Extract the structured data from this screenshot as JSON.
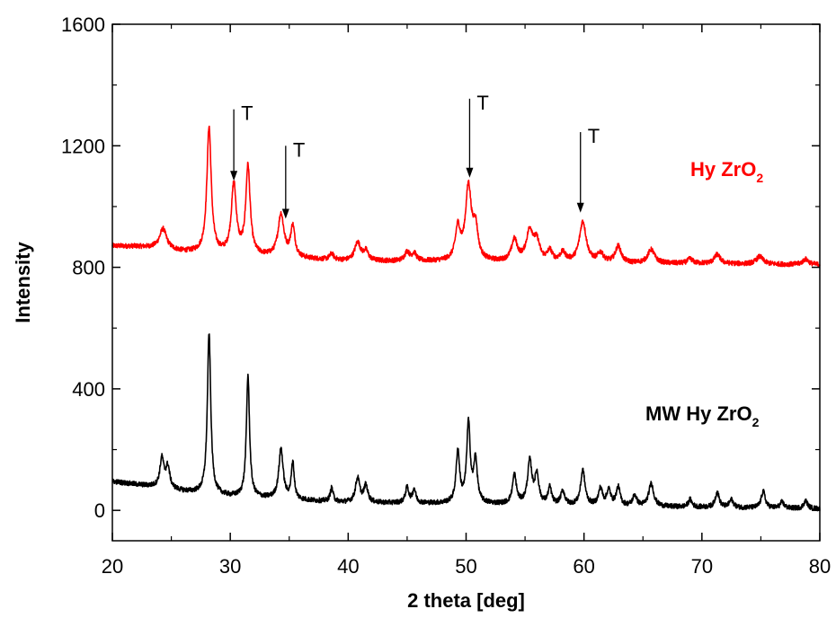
{
  "chart_data": {
    "type": "line",
    "title": "",
    "xlabel": "2 theta [deg]",
    "ylabel": "Intensity",
    "xlim": [
      20,
      80
    ],
    "ylim": [
      -100,
      1600
    ],
    "x_ticks": [
      20,
      30,
      40,
      50,
      60,
      70,
      80
    ],
    "y_ticks": [
      0,
      400,
      800,
      1200,
      1600
    ],
    "x_tick_labels": [
      "20",
      "30",
      "40",
      "50",
      "60",
      "70",
      "80"
    ],
    "y_tick_labels": [
      "0",
      "400",
      "800",
      "1200",
      "1600"
    ],
    "grid": false,
    "series": [
      {
        "name": "Hy ZrO2",
        "label_main": "Hy ZrO",
        "label_sub": "2",
        "color": "#ff0000",
        "baseline": [
          [
            20,
            870
          ],
          [
            22,
            868
          ],
          [
            24,
            862
          ],
          [
            26,
            850
          ],
          [
            30,
            840
          ],
          [
            40,
            820
          ],
          [
            50,
            818
          ],
          [
            60,
            812
          ],
          [
            70,
            812
          ],
          [
            80,
            808
          ]
        ],
        "peaks": [
          {
            "x": 24.3,
            "h": 65,
            "w": 0.35
          },
          {
            "x": 28.2,
            "h": 415,
            "w": 0.22
          },
          {
            "x": 30.3,
            "h": 230,
            "w": 0.25
          },
          {
            "x": 31.5,
            "h": 290,
            "w": 0.22
          },
          {
            "x": 34.3,
            "h": 140,
            "w": 0.3
          },
          {
            "x": 35.3,
            "h": 100,
            "w": 0.22
          },
          {
            "x": 38.6,
            "h": 20,
            "w": 0.2
          },
          {
            "x": 40.8,
            "h": 60,
            "w": 0.3
          },
          {
            "x": 41.5,
            "h": 30,
            "w": 0.25
          },
          {
            "x": 45.0,
            "h": 30,
            "w": 0.25
          },
          {
            "x": 45.6,
            "h": 25,
            "w": 0.22
          },
          {
            "x": 49.3,
            "h": 105,
            "w": 0.25
          },
          {
            "x": 50.2,
            "h": 240,
            "w": 0.3
          },
          {
            "x": 50.8,
            "h": 100,
            "w": 0.25
          },
          {
            "x": 54.1,
            "h": 70,
            "w": 0.3
          },
          {
            "x": 55.4,
            "h": 100,
            "w": 0.35
          },
          {
            "x": 56.0,
            "h": 60,
            "w": 0.3
          },
          {
            "x": 57.1,
            "h": 35,
            "w": 0.25
          },
          {
            "x": 58.2,
            "h": 30,
            "w": 0.3
          },
          {
            "x": 59.9,
            "h": 135,
            "w": 0.35
          },
          {
            "x": 61.4,
            "h": 30,
            "w": 0.3
          },
          {
            "x": 62.9,
            "h": 55,
            "w": 0.3
          },
          {
            "x": 65.7,
            "h": 45,
            "w": 0.35
          },
          {
            "x": 69.0,
            "h": 15,
            "w": 0.25
          },
          {
            "x": 71.3,
            "h": 30,
            "w": 0.3
          },
          {
            "x": 74.9,
            "h": 25,
            "w": 0.35
          },
          {
            "x": 78.8,
            "h": 18,
            "w": 0.3
          }
        ]
      },
      {
        "name": "MW Hy ZrO2",
        "label_main": "MW Hy ZrO",
        "label_sub": "2",
        "color": "#000000",
        "baseline": [
          [
            20,
            95
          ],
          [
            22,
            85
          ],
          [
            24,
            75
          ],
          [
            26,
            62
          ],
          [
            30,
            45
          ],
          [
            40,
            25
          ],
          [
            50,
            22
          ],
          [
            60,
            15
          ],
          [
            70,
            10
          ],
          [
            80,
            5
          ]
        ],
        "peaks": [
          {
            "x": 24.2,
            "h": 95,
            "w": 0.2
          },
          {
            "x": 24.7,
            "h": 70,
            "w": 0.2
          },
          {
            "x": 28.2,
            "h": 530,
            "w": 0.17
          },
          {
            "x": 31.5,
            "h": 400,
            "w": 0.16
          },
          {
            "x": 34.3,
            "h": 165,
            "w": 0.22
          },
          {
            "x": 35.3,
            "h": 120,
            "w": 0.15
          },
          {
            "x": 38.6,
            "h": 45,
            "w": 0.15
          },
          {
            "x": 40.8,
            "h": 80,
            "w": 0.22
          },
          {
            "x": 41.5,
            "h": 55,
            "w": 0.2
          },
          {
            "x": 45.0,
            "h": 50,
            "w": 0.18
          },
          {
            "x": 45.6,
            "h": 45,
            "w": 0.16
          },
          {
            "x": 49.3,
            "h": 170,
            "w": 0.18
          },
          {
            "x": 50.2,
            "h": 260,
            "w": 0.18
          },
          {
            "x": 50.8,
            "h": 140,
            "w": 0.18
          },
          {
            "x": 54.1,
            "h": 95,
            "w": 0.2
          },
          {
            "x": 55.4,
            "h": 140,
            "w": 0.22
          },
          {
            "x": 56.0,
            "h": 95,
            "w": 0.2
          },
          {
            "x": 57.1,
            "h": 55,
            "w": 0.18
          },
          {
            "x": 58.2,
            "h": 45,
            "w": 0.2
          },
          {
            "x": 59.9,
            "h": 115,
            "w": 0.22
          },
          {
            "x": 61.4,
            "h": 55,
            "w": 0.2
          },
          {
            "x": 62.1,
            "h": 50,
            "w": 0.2
          },
          {
            "x": 62.9,
            "h": 60,
            "w": 0.2
          },
          {
            "x": 64.3,
            "h": 35,
            "w": 0.2
          },
          {
            "x": 65.7,
            "h": 75,
            "w": 0.25
          },
          {
            "x": 69.0,
            "h": 25,
            "w": 0.18
          },
          {
            "x": 71.3,
            "h": 50,
            "w": 0.2
          },
          {
            "x": 72.5,
            "h": 25,
            "w": 0.2
          },
          {
            "x": 75.2,
            "h": 55,
            "w": 0.2
          },
          {
            "x": 76.8,
            "h": 20,
            "w": 0.2
          },
          {
            "x": 78.8,
            "h": 25,
            "w": 0.2
          }
        ]
      }
    ],
    "annotations": [
      {
        "text": "T",
        "x": 30.3,
        "arrow_top": 1320,
        "arrow_tip": 1085
      },
      {
        "text": "T",
        "x": 34.7,
        "arrow_top": 1200,
        "arrow_tip": 960
      },
      {
        "text": "T",
        "x": 50.3,
        "arrow_top": 1355,
        "arrow_tip": 1095
      },
      {
        "text": "T",
        "x": 59.7,
        "arrow_top": 1245,
        "arrow_tip": 980
      }
    ]
  }
}
